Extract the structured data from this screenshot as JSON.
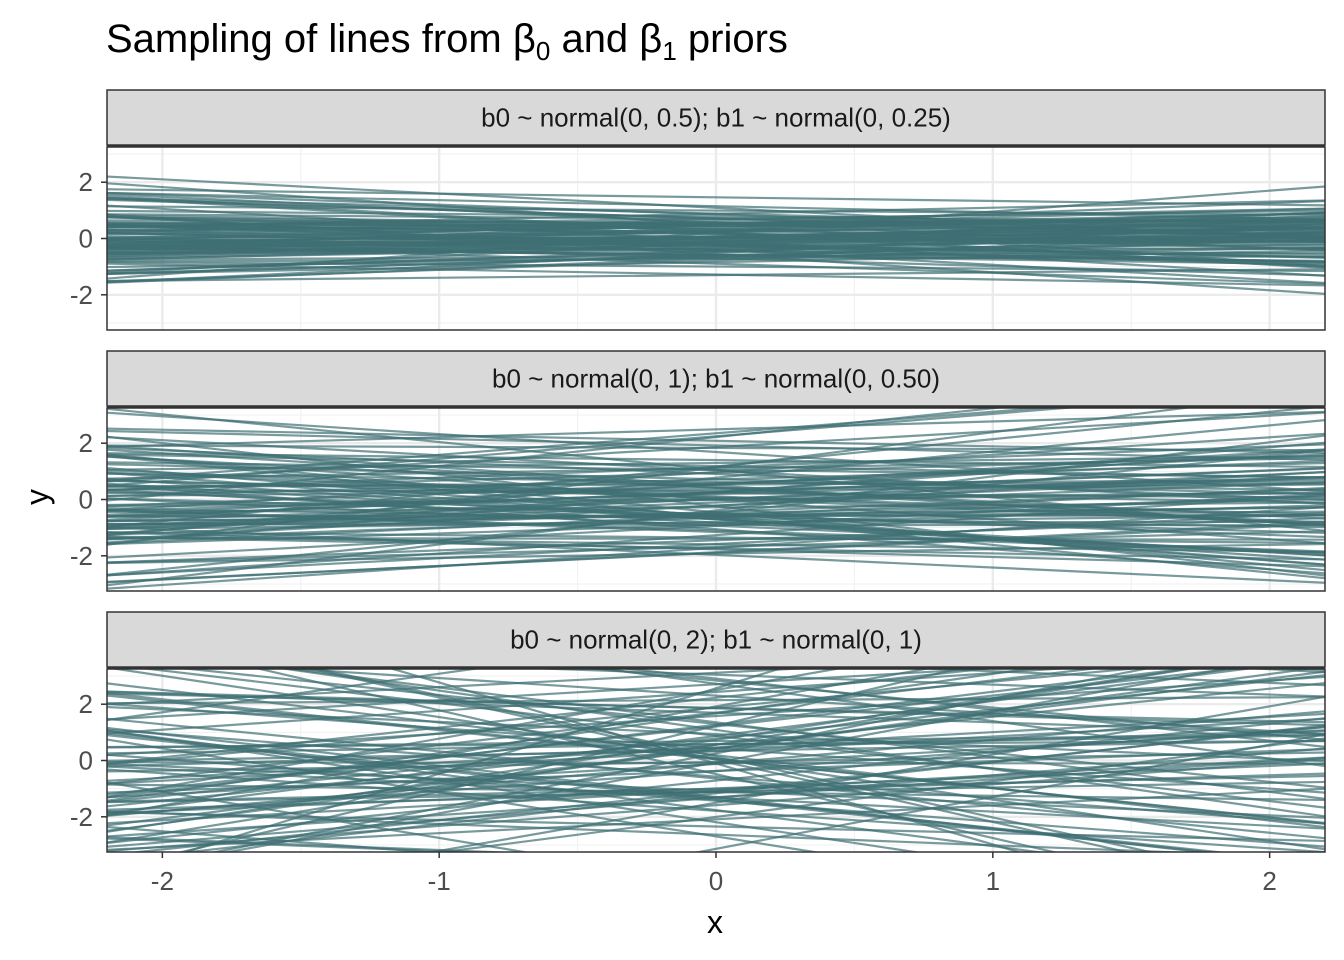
{
  "chart_data": {
    "type": "line",
    "title": {
      "prefix": "Sampling of lines from ",
      "sym1": "β",
      "sub1": "0",
      "middle": " and ",
      "sym2": "β",
      "sub2": "1",
      "suffix": " priors"
    },
    "xlabel": "x",
    "ylabel": "y",
    "xlim": [
      -2.2,
      2.2
    ],
    "ylim": [
      -3.25,
      3.25
    ],
    "x_ticks": [
      -2,
      -1,
      0,
      1,
      2
    ],
    "x_tick_labels": [
      "-2",
      "-1",
      "0",
      "1",
      "2"
    ],
    "y_ticks": [
      -2,
      0,
      2
    ],
    "y_tick_labels": [
      "-2",
      "0",
      "2"
    ],
    "grid": true,
    "line_color": "#3E6F73",
    "n_lines_per_panel": 100,
    "facets": [
      {
        "label": "b0 ~ normal(0, 0.5); b1 ~ normal(0, 0.25)",
        "b0_sd": 0.5,
        "b1_sd": 0.25
      },
      {
        "label": "b0 ~ normal(0, 1); b1 ~ normal(0, 0.50)",
        "b0_sd": 1,
        "b1_sd": 0.5
      },
      {
        "label": "b0 ~ normal(0, 2); b1 ~ normal(0, 1)",
        "b0_sd": 2,
        "b1_sd": 1
      }
    ]
  }
}
